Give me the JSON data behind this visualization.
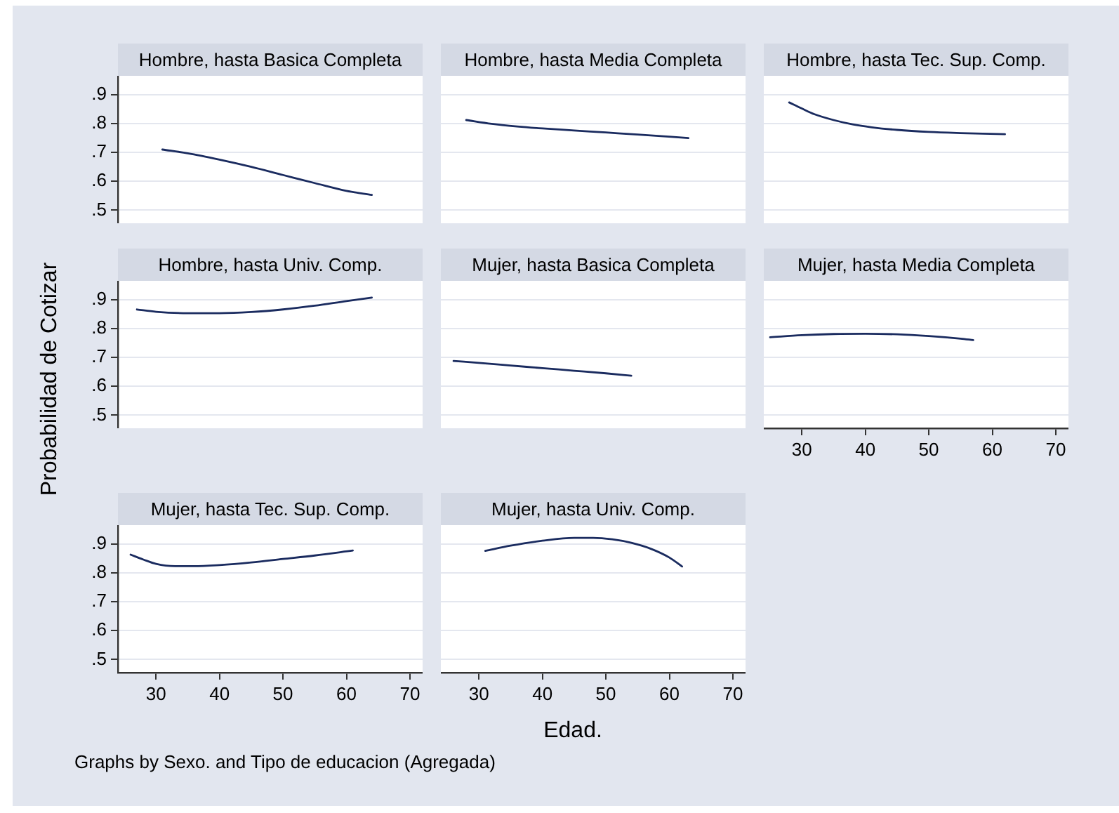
{
  "chart_data": [
    {
      "type": "line",
      "title": "Hombre, hasta Basica Completa",
      "x": [
        31,
        35,
        40,
        45,
        50,
        55,
        60,
        64
      ],
      "values": [
        0.71,
        0.697,
        0.675,
        0.65,
        0.622,
        0.594,
        0.567,
        0.553
      ],
      "color": "#1a2b5f",
      "xlim": [
        24,
        72
      ],
      "ylim": [
        0.455,
        0.965
      ],
      "yticks": [
        {
          "value": 0.5,
          "label": ".5"
        },
        {
          "value": 0.6,
          "label": ".6"
        },
        {
          "value": 0.7,
          "label": ".7"
        },
        {
          "value": 0.8,
          "label": ".8"
        },
        {
          "value": 0.9,
          "label": ".9"
        }
      ],
      "grid": "y",
      "tick_labels": "y"
    },
    {
      "type": "line",
      "title": "Hombre, hasta Media Completa",
      "x": [
        28,
        32,
        36,
        40,
        45,
        50,
        55,
        63
      ],
      "values": [
        0.812,
        0.799,
        0.79,
        0.783,
        0.776,
        0.769,
        0.762,
        0.75
      ],
      "color": "#1a2b5f",
      "xlim": [
        24,
        72
      ],
      "ylim": [
        0.455,
        0.965
      ],
      "yticks": [
        {
          "value": 0.5,
          "label": null
        },
        {
          "value": 0.6,
          "label": null
        },
        {
          "value": 0.7,
          "label": null
        },
        {
          "value": 0.8,
          "label": null
        },
        {
          "value": 0.9,
          "label": null
        }
      ],
      "grid": "y",
      "tick_labels": false
    },
    {
      "type": "line",
      "title": "Hombre, hasta Tec. Sup. Comp.",
      "x": [
        28,
        30,
        32,
        35,
        38,
        41,
        45,
        50,
        55,
        62
      ],
      "values": [
        0.873,
        0.852,
        0.832,
        0.812,
        0.797,
        0.787,
        0.778,
        0.771,
        0.767,
        0.763
      ],
      "color": "#1a2b5f",
      "xlim": [
        24,
        72
      ],
      "ylim": [
        0.455,
        0.965
      ],
      "yticks": [
        {
          "value": 0.5,
          "label": null
        },
        {
          "value": 0.6,
          "label": null
        },
        {
          "value": 0.7,
          "label": null
        },
        {
          "value": 0.8,
          "label": null
        },
        {
          "value": 0.9,
          "label": null
        }
      ],
      "grid": "y",
      "tick_labels": false
    },
    {
      "type": "line",
      "title": "Hombre, hasta Univ. Comp.",
      "ylabel": "Probabilidad de Cotizar",
      "x": [
        27,
        30,
        35,
        40,
        45,
        50,
        55,
        60,
        64
      ],
      "values": [
        0.866,
        0.858,
        0.853,
        0.853,
        0.857,
        0.866,
        0.879,
        0.895,
        0.907
      ],
      "color": "#1a2b5f",
      "xlim": [
        24,
        72
      ],
      "ylim": [
        0.455,
        0.965
      ],
      "yticks": [
        {
          "value": 0.5,
          "label": ".5"
        },
        {
          "value": 0.6,
          "label": ".6"
        },
        {
          "value": 0.7,
          "label": ".7"
        },
        {
          "value": 0.8,
          "label": ".8"
        },
        {
          "value": 0.9,
          "label": ".9"
        }
      ],
      "grid": "y",
      "tick_labels": "y"
    },
    {
      "type": "line",
      "title": "Mujer, hasta Basica Completa",
      "x": [
        26,
        30,
        35,
        40,
        45,
        50,
        54
      ],
      "values": [
        0.688,
        0.681,
        0.672,
        0.663,
        0.654,
        0.645,
        0.637
      ],
      "color": "#1a2b5f",
      "xlim": [
        24,
        72
      ],
      "ylim": [
        0.455,
        0.965
      ],
      "yticks": [
        {
          "value": 0.5,
          "label": null
        },
        {
          "value": 0.6,
          "label": null
        },
        {
          "value": 0.7,
          "label": null
        },
        {
          "value": 0.8,
          "label": null
        },
        {
          "value": 0.9,
          "label": null
        }
      ],
      "grid": "y",
      "tick_labels": false
    },
    {
      "type": "line",
      "title": "Mujer, hasta Media Completa",
      "x": [
        25,
        30,
        35,
        40,
        45,
        50,
        55,
        57
      ],
      "values": [
        0.77,
        0.777,
        0.781,
        0.782,
        0.78,
        0.774,
        0.765,
        0.76
      ],
      "color": "#1a2b5f",
      "xlim": [
        24,
        72
      ],
      "ylim": [
        0.455,
        0.965
      ],
      "xticks": [
        30,
        40,
        50,
        60,
        70
      ],
      "yticks": [
        {
          "value": 0.5,
          "label": null
        },
        {
          "value": 0.6,
          "label": null
        },
        {
          "value": 0.7,
          "label": null
        },
        {
          "value": 0.8,
          "label": null
        },
        {
          "value": 0.9,
          "label": null
        }
      ],
      "grid": "y",
      "tick_labels": "x"
    },
    {
      "type": "line",
      "title": "Mujer, hasta Tec. Sup. Comp.",
      "annotations": [
        "Graphs by Sexo. and Tipo de educacion (Agregada)"
      ],
      "x": [
        26,
        28,
        30,
        33,
        36,
        40,
        45,
        50,
        55,
        61
      ],
      "values": [
        0.863,
        0.846,
        0.831,
        0.823,
        0.823,
        0.827,
        0.836,
        0.848,
        0.86,
        0.877
      ],
      "color": "#1a2b5f",
      "xlim": [
        24,
        72
      ],
      "ylim": [
        0.455,
        0.965
      ],
      "xticks": [
        30,
        40,
        50,
        60,
        70
      ],
      "yticks": [
        {
          "value": 0.5,
          "label": ".5"
        },
        {
          "value": 0.6,
          "label": ".6"
        },
        {
          "value": 0.7,
          "label": ".7"
        },
        {
          "value": 0.8,
          "label": ".8"
        },
        {
          "value": 0.9,
          "label": ".9"
        }
      ],
      "grid": "y"
    },
    {
      "type": "line",
      "title": "Mujer, hasta Univ. Comp.",
      "xlabel": "Edad.",
      "x": [
        31,
        35,
        40,
        45,
        48,
        51,
        54,
        57,
        60,
        62
      ],
      "values": [
        0.876,
        0.894,
        0.911,
        0.921,
        0.921,
        0.916,
        0.904,
        0.884,
        0.853,
        0.822
      ],
      "color": "#1a2b5f",
      "xlim": [
        24,
        72
      ],
      "ylim": [
        0.455,
        0.965
      ],
      "xticks": [
        30,
        40,
        50,
        60,
        70
      ],
      "yticks": [
        {
          "value": 0.5,
          "label": null
        },
        {
          "value": 0.6,
          "label": null
        },
        {
          "value": 0.7,
          "label": null
        },
        {
          "value": 0.8,
          "label": null
        },
        {
          "value": 0.9,
          "label": null
        }
      ],
      "grid": "y",
      "tick_labels": "x"
    }
  ]
}
